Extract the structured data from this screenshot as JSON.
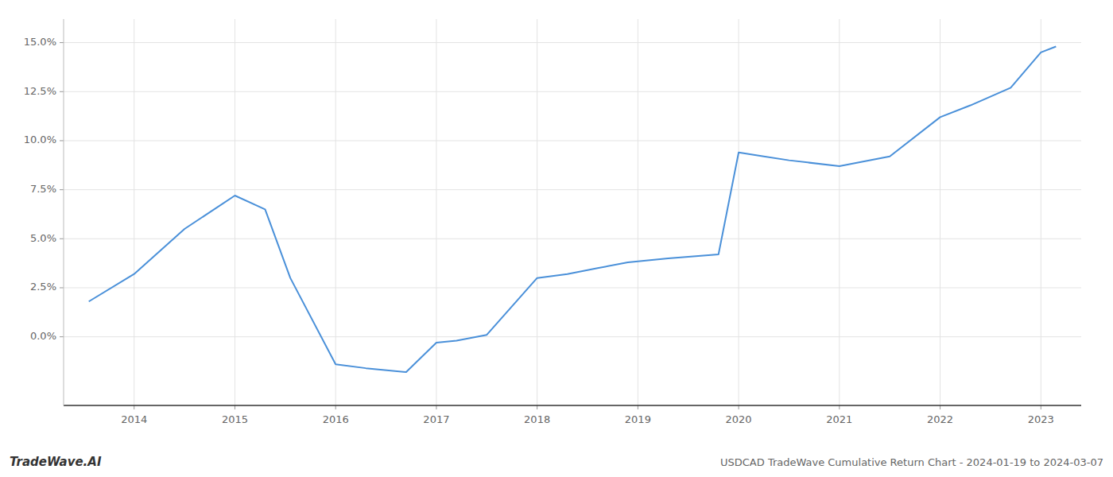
{
  "chart_data": {
    "type": "line",
    "title": "USDCAD TradeWave Cumulative Return Chart - 2024-01-19 to 2024-03-07",
    "annotations": [
      "TradeWave.AI"
    ],
    "x": [
      2013.55,
      2014.0,
      2014.5,
      2015.0,
      2015.3,
      2015.55,
      2016.0,
      2016.3,
      2016.7,
      2017.0,
      2017.2,
      2017.5,
      2018.0,
      2018.3,
      2018.6,
      2018.9,
      2019.3,
      2019.55,
      2019.8,
      2020.0,
      2020.25,
      2020.5,
      2021.0,
      2021.5,
      2022.0,
      2022.3,
      2022.7,
      2023.0,
      2023.15
    ],
    "values": [
      0.018,
      0.032,
      0.055,
      0.072,
      0.065,
      0.03,
      -0.014,
      -0.016,
      -0.018,
      -0.003,
      -0.002,
      0.001,
      0.03,
      0.032,
      0.035,
      0.038,
      0.04,
      0.041,
      0.042,
      0.094,
      0.092,
      0.09,
      0.087,
      0.092,
      0.112,
      0.118,
      0.127,
      0.145,
      0.148
    ],
    "color": "#4a90d9",
    "xlim": [
      2013.3,
      2023.4
    ],
    "ylim": [
      -0.035,
      0.162
    ],
    "xticks": [
      2014,
      2015,
      2016,
      2017,
      2018,
      2019,
      2020,
      2021,
      2022,
      2023
    ],
    "yticks": [
      {
        "value": 0,
        "label": "0.0%"
      },
      {
        "value": 0.025,
        "label": "2.5%"
      },
      {
        "value": 0.05,
        "label": "5.0%"
      },
      {
        "value": 0.075,
        "label": "7.5%"
      },
      {
        "value": 0.1,
        "label": "10.0%"
      },
      {
        "value": 0.125,
        "label": "12.5%"
      },
      {
        "value": 0.15,
        "label": "15.0%"
      }
    ],
    "grid": true
  }
}
